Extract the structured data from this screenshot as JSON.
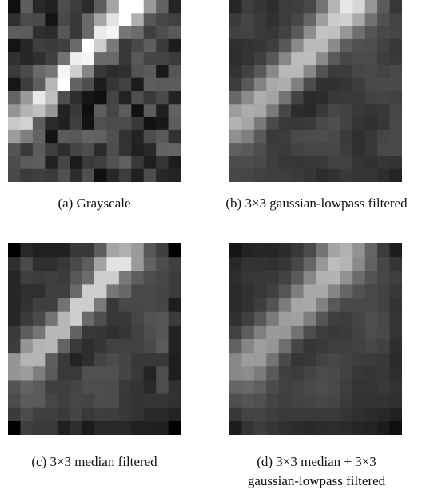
{
  "panels": [
    {
      "caption": [
        "(a) Grayscale"
      ]
    },
    {
      "caption": [
        "(b) 3×3 gaussian-lowpass filtered"
      ]
    },
    {
      "caption": [
        "(c) 3×3 median filtered"
      ]
    },
    {
      "caption": [
        "(d) 3×3 median + 3×3",
        "gaussian-lowpass filtered"
      ]
    }
  ]
}
